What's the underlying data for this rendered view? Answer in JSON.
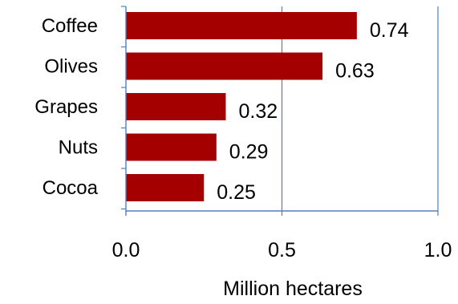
{
  "chart_data": {
    "type": "bar",
    "orientation": "horizontal",
    "categories": [
      "Coffee",
      "Olives",
      "Grapes",
      "Nuts",
      "Cocoa"
    ],
    "values": [
      0.74,
      0.63,
      0.32,
      0.29,
      0.25
    ],
    "data_labels": [
      "0.74",
      "0.63",
      "0.32",
      "0.29",
      "0.25"
    ],
    "xlabel": "Million hectares",
    "ylabel": "",
    "xlim": [
      0,
      1.0
    ],
    "x_ticks": [
      0,
      0.5,
      1.0
    ],
    "x_tick_labels": [
      "0.0",
      "0.5",
      "1.0"
    ],
    "grid": "vertical",
    "legend": "none",
    "colors": {
      "bar": "#A50000",
      "axis": "#4F81BD",
      "grid": "#4F81BD"
    }
  }
}
